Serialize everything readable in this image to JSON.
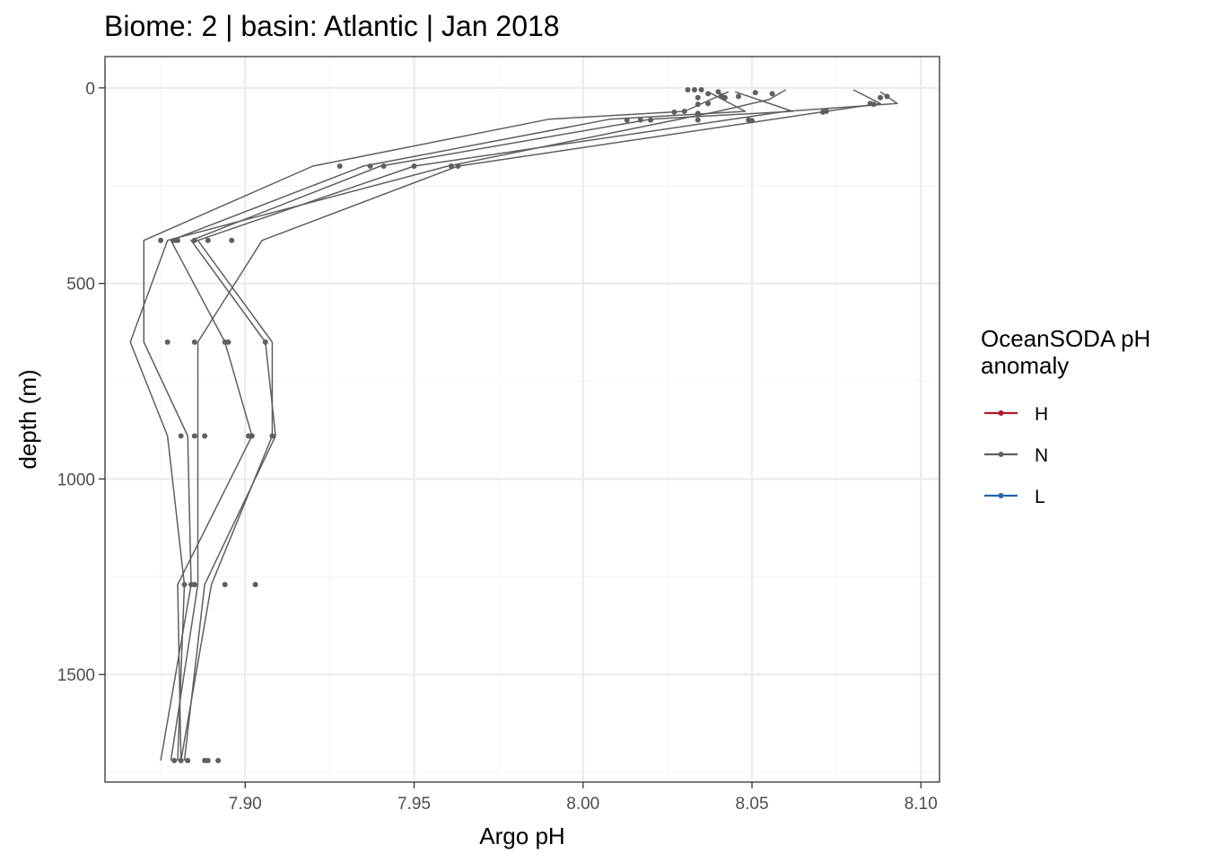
{
  "chart_data": {
    "type": "line",
    "title": "Biome: 2 | basin: Atlantic  | Jan 2018",
    "xlabel": "Argo pH",
    "ylabel": "depth (m)",
    "xlim": [
      7.8585,
      8.1055
    ],
    "ylim": [
      1775,
      -80
    ],
    "y_reversed": true,
    "x_ticks": [
      7.9,
      7.95,
      8.0,
      8.05,
      8.1
    ],
    "x_tick_labels": [
      "7.90",
      "7.95",
      "8.00",
      "8.05",
      "8.10"
    ],
    "y_ticks": [
      0,
      500,
      1000,
      1500
    ],
    "y_tick_labels": [
      "0",
      "500",
      "1000",
      "1500"
    ],
    "grid": true,
    "legend_position": "right",
    "legend": {
      "title_lines": [
        "OceanSODA pH",
        "anomaly"
      ],
      "entries": [
        {
          "label": "H",
          "color": "#b2182b"
        },
        {
          "label": "N",
          "color": "#5f5f5f"
        },
        {
          "label": "L",
          "color": "#2166ac"
        }
      ]
    },
    "series": [
      {
        "anomaly": "N",
        "points": [
          {
            "x": 8.043,
            "y": 10
          },
          {
            "x": 8.03,
            "y": 60
          },
          {
            "x": 7.99,
            "y": 80
          },
          {
            "x": 7.92,
            "y": 200
          },
          {
            "x": 7.87,
            "y": 390
          },
          {
            "x": 7.87,
            "y": 650
          },
          {
            "x": 7.883,
            "y": 890
          },
          {
            "x": 7.884,
            "y": 1270
          },
          {
            "x": 7.875,
            "y": 1720
          }
        ]
      },
      {
        "anomaly": "N",
        "points": [
          {
            "x": 8.06,
            "y": 5
          },
          {
            "x": 8.055,
            "y": 30
          },
          {
            "x": 8.04,
            "y": 60
          },
          {
            "x": 7.96,
            "y": 200
          },
          {
            "x": 7.877,
            "y": 390
          },
          {
            "x": 7.866,
            "y": 650
          },
          {
            "x": 7.877,
            "y": 890
          },
          {
            "x": 7.882,
            "y": 1270
          },
          {
            "x": 7.88,
            "y": 1720
          }
        ]
      },
      {
        "anomaly": "N",
        "points": [
          {
            "x": 8.045,
            "y": 10
          },
          {
            "x": 8.062,
            "y": 60
          },
          {
            "x": 8.02,
            "y": 80
          },
          {
            "x": 7.94,
            "y": 200
          },
          {
            "x": 7.884,
            "y": 390
          },
          {
            "x": 7.906,
            "y": 650
          },
          {
            "x": 7.909,
            "y": 890
          },
          {
            "x": 7.888,
            "y": 1270
          },
          {
            "x": 7.882,
            "y": 1720
          }
        ]
      },
      {
        "anomaly": "N",
        "points": [
          {
            "x": 8.088,
            "y": 10
          },
          {
            "x": 8.093,
            "y": 40
          },
          {
            "x": 8.06,
            "y": 60
          },
          {
            "x": 7.95,
            "y": 200
          },
          {
            "x": 7.886,
            "y": 390
          },
          {
            "x": 7.908,
            "y": 650
          },
          {
            "x": 7.908,
            "y": 890
          },
          {
            "x": 7.89,
            "y": 1270
          },
          {
            "x": 7.881,
            "y": 1720
          }
        ]
      },
      {
        "anomaly": "N",
        "points": [
          {
            "x": 8.08,
            "y": 5
          },
          {
            "x": 8.088,
            "y": 40
          },
          {
            "x": 8.072,
            "y": 60
          },
          {
            "x": 7.963,
            "y": 200
          },
          {
            "x": 7.905,
            "y": 390
          },
          {
            "x": 7.886,
            "y": 650
          },
          {
            "x": 7.886,
            "y": 890
          },
          {
            "x": 7.886,
            "y": 1270
          },
          {
            "x": 7.878,
            "y": 1720
          }
        ]
      },
      {
        "anomaly": "N",
        "points": [
          {
            "x": 8.037,
            "y": 10
          },
          {
            "x": 8.048,
            "y": 60
          },
          {
            "x": 8.008,
            "y": 80
          },
          {
            "x": 7.935,
            "y": 200
          },
          {
            "x": 7.878,
            "y": 390
          },
          {
            "x": 7.894,
            "y": 650
          },
          {
            "x": 7.902,
            "y": 890
          },
          {
            "x": 7.88,
            "y": 1270
          },
          {
            "x": 7.881,
            "y": 1720
          }
        ]
      }
    ],
    "points": [
      {
        "x": 8.031,
        "y": 5
      },
      {
        "x": 8.033,
        "y": 5
      },
      {
        "x": 8.035,
        "y": 5
      },
      {
        "x": 8.037,
        "y": 15
      },
      {
        "x": 8.04,
        "y": 10
      },
      {
        "x": 8.041,
        "y": 20
      },
      {
        "x": 8.051,
        "y": 12
      },
      {
        "x": 8.056,
        "y": 15
      },
      {
        "x": 8.042,
        "y": 25
      },
      {
        "x": 8.034,
        "y": 25
      },
      {
        "x": 8.046,
        "y": 22
      },
      {
        "x": 8.09,
        "y": 22
      },
      {
        "x": 8.088,
        "y": 25
      },
      {
        "x": 8.085,
        "y": 40
      },
      {
        "x": 8.086,
        "y": 42
      },
      {
        "x": 8.037,
        "y": 40
      },
      {
        "x": 8.034,
        "y": 42
      },
      {
        "x": 8.072,
        "y": 60
      },
      {
        "x": 8.071,
        "y": 62
      },
      {
        "x": 8.027,
        "y": 62
      },
      {
        "x": 8.03,
        "y": 60
      },
      {
        "x": 8.034,
        "y": 65
      },
      {
        "x": 8.013,
        "y": 82
      },
      {
        "x": 8.017,
        "y": 82
      },
      {
        "x": 8.02,
        "y": 82
      },
      {
        "x": 8.034,
        "y": 82
      },
      {
        "x": 8.049,
        "y": 82
      },
      {
        "x": 8.05,
        "y": 84
      },
      {
        "x": 7.928,
        "y": 200
      },
      {
        "x": 7.937,
        "y": 200
      },
      {
        "x": 7.941,
        "y": 200
      },
      {
        "x": 7.95,
        "y": 200
      },
      {
        "x": 7.961,
        "y": 200
      },
      {
        "x": 7.963,
        "y": 200
      },
      {
        "x": 7.875,
        "y": 390
      },
      {
        "x": 7.879,
        "y": 390
      },
      {
        "x": 7.88,
        "y": 390
      },
      {
        "x": 7.885,
        "y": 390
      },
      {
        "x": 7.889,
        "y": 390
      },
      {
        "x": 7.896,
        "y": 390
      },
      {
        "x": 7.877,
        "y": 650
      },
      {
        "x": 7.885,
        "y": 650
      },
      {
        "x": 7.894,
        "y": 650
      },
      {
        "x": 7.895,
        "y": 650
      },
      {
        "x": 7.906,
        "y": 650
      },
      {
        "x": 7.881,
        "y": 890
      },
      {
        "x": 7.885,
        "y": 890
      },
      {
        "x": 7.888,
        "y": 890
      },
      {
        "x": 7.901,
        "y": 890
      },
      {
        "x": 7.902,
        "y": 890
      },
      {
        "x": 7.908,
        "y": 890
      },
      {
        "x": 7.882,
        "y": 1270
      },
      {
        "x": 7.884,
        "y": 1270
      },
      {
        "x": 7.885,
        "y": 1270
      },
      {
        "x": 7.894,
        "y": 1270
      },
      {
        "x": 7.903,
        "y": 1270
      },
      {
        "x": 7.879,
        "y": 1720
      },
      {
        "x": 7.881,
        "y": 1720
      },
      {
        "x": 7.883,
        "y": 1720
      },
      {
        "x": 7.888,
        "y": 1720
      },
      {
        "x": 7.889,
        "y": 1720
      },
      {
        "x": 7.892,
        "y": 1720
      }
    ],
    "colors": {
      "line": "#5f5f5f",
      "point": "#5f5f5f",
      "grid_major": "#ebebeb",
      "grid_minor": "#f5f5f5",
      "panel_border": "#333333",
      "tick": "#333333"
    }
  }
}
